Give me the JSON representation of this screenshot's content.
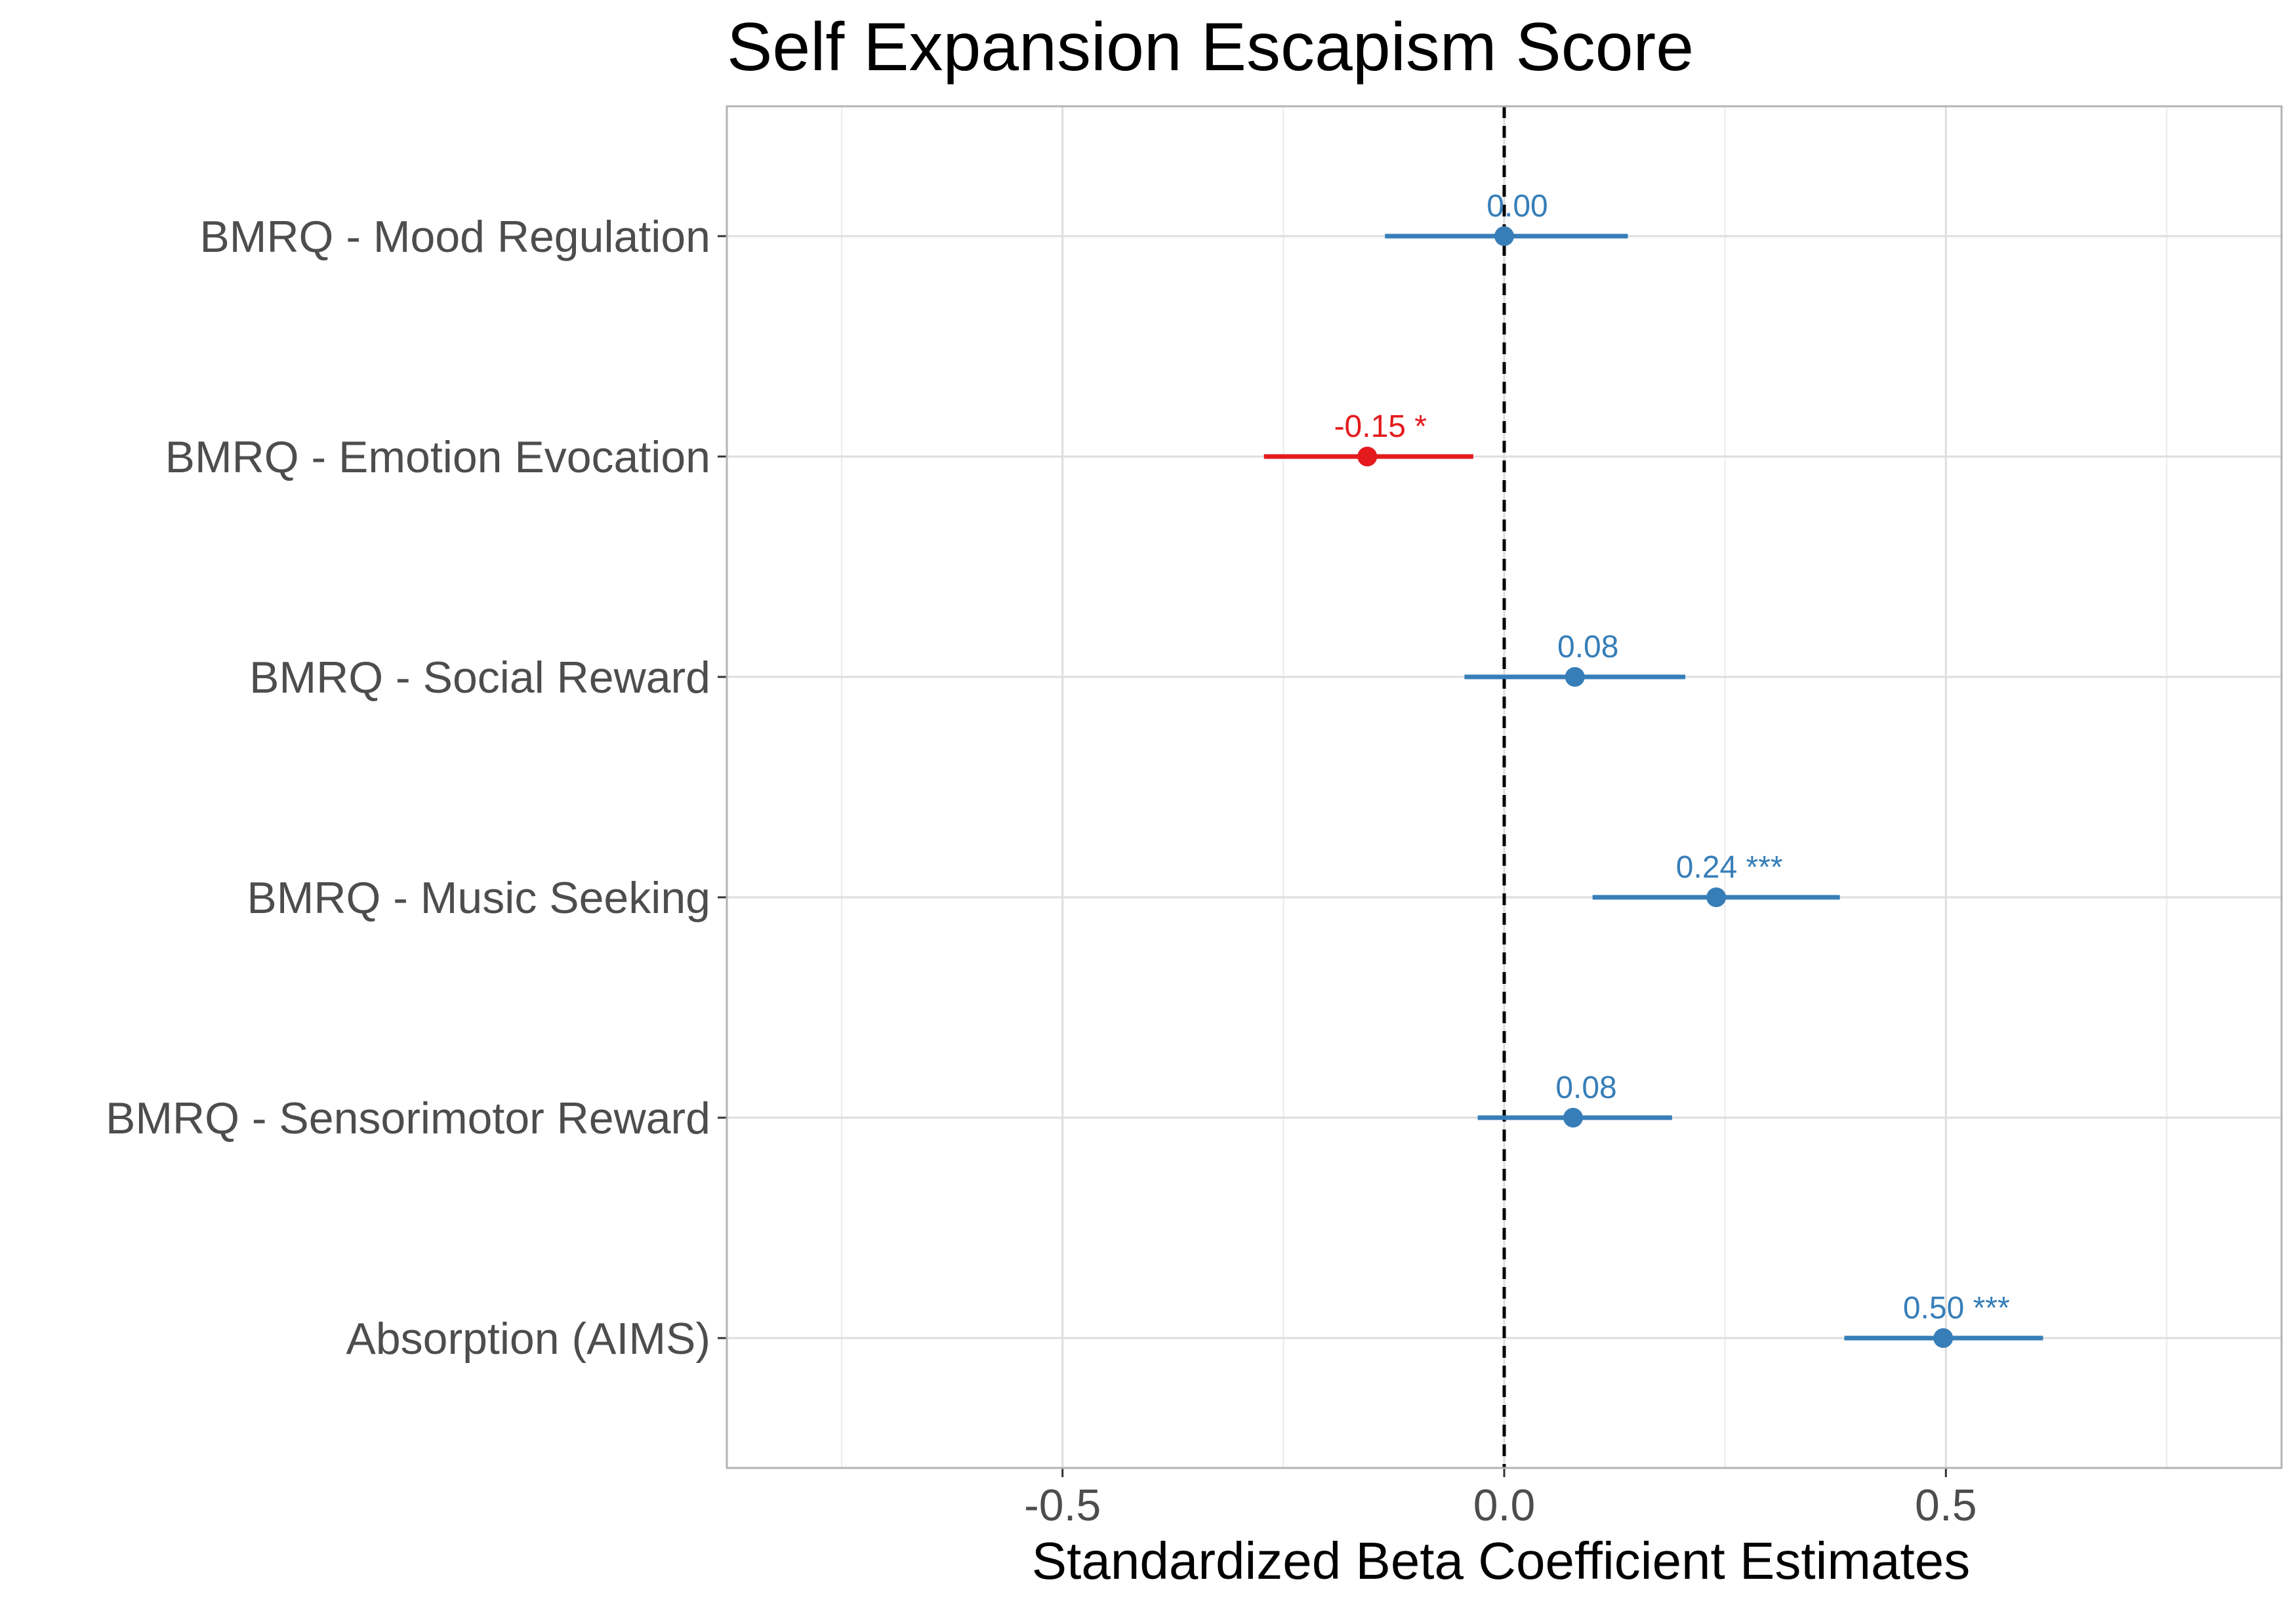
{
  "chart_data": {
    "type": "scatter",
    "variant": "forest-plot",
    "title": "Self Expansion Escapism Score",
    "xlabel": "Standardized Beta Coefficient Estimates",
    "ylabel": "",
    "xlim": [
      -0.88,
      0.88
    ],
    "x_ticks": [
      -0.5,
      0.0,
      0.5
    ],
    "x_tick_labels": [
      "-0.5",
      "0.0",
      "0.5"
    ],
    "reference_line": 0.0,
    "grid": true,
    "legend": "none",
    "colors": {
      "significant_negative": "#e41a1c",
      "default": "#377eb8"
    },
    "rows": [
      {
        "label": "BMRQ - Mood Regulation",
        "estimate": 0.0,
        "ci_low": -0.135,
        "ci_high": 0.14,
        "annotation": "0.00",
        "color": "#377eb8"
      },
      {
        "label": "BMRQ - Emotion Evocation",
        "estimate": -0.155,
        "ci_low": -0.272,
        "ci_high": -0.035,
        "annotation": "-0.15 *",
        "color": "#e41a1c"
      },
      {
        "label": "BMRQ - Social Reward",
        "estimate": 0.08,
        "ci_low": -0.045,
        "ci_high": 0.205,
        "annotation": "0.08",
        "color": "#377eb8"
      },
      {
        "label": "BMRQ - Music Seeking",
        "estimate": 0.24,
        "ci_low": 0.1,
        "ci_high": 0.38,
        "annotation": "0.24 ***",
        "color": "#377eb8"
      },
      {
        "label": "BMRQ - Sensorimotor Reward",
        "estimate": 0.078,
        "ci_low": -0.03,
        "ci_high": 0.19,
        "annotation": "0.08",
        "color": "#377eb8"
      },
      {
        "label": "Absorption (AIMS)",
        "estimate": 0.497,
        "ci_low": 0.385,
        "ci_high": 0.61,
        "annotation": "0.50 ***",
        "color": "#377eb8"
      }
    ]
  }
}
